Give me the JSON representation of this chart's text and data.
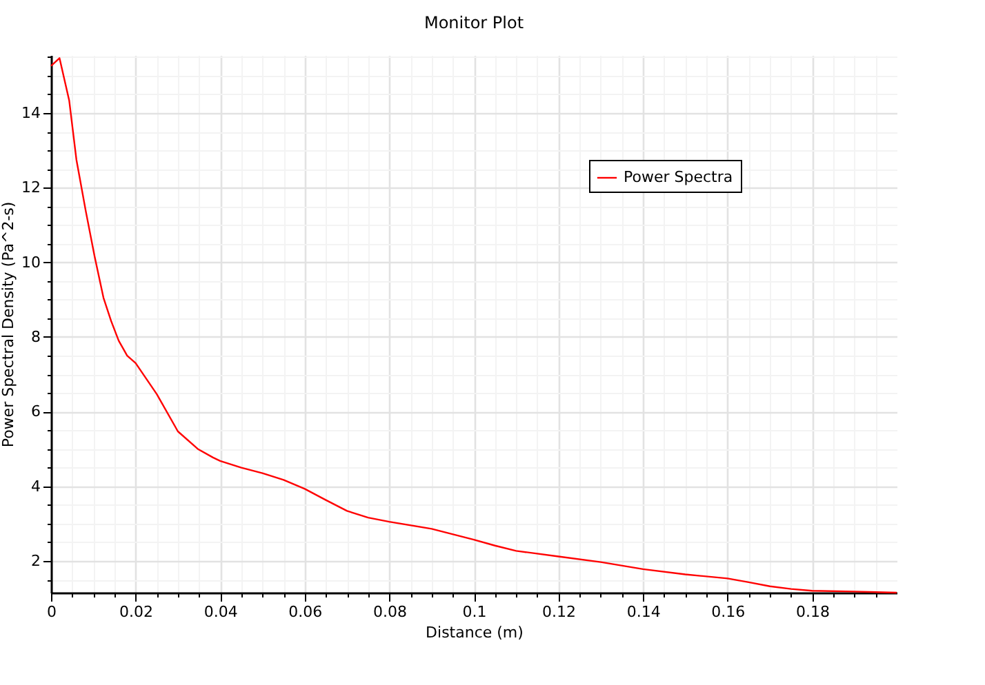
{
  "chart_data": {
    "type": "line",
    "title": "Monitor Plot",
    "xlabel": "Distance  (m)",
    "ylabel": "Power Spectral Density  (Pa^2-s)",
    "x": [
      0,
      0.002,
      0.0043,
      0.006,
      0.0082,
      0.0103,
      0.0124,
      0.0142,
      0.016,
      0.018,
      0.02,
      0.025,
      0.03,
      0.0347,
      0.0383,
      0.04,
      0.045,
      0.05,
      0.055,
      0.06,
      0.065,
      0.07,
      0.075,
      0.08,
      0.09,
      0.1,
      0.105,
      0.11,
      0.12,
      0.13,
      0.14,
      0.15,
      0.16,
      0.165,
      0.17,
      0.175,
      0.18,
      0.19,
      0.2
    ],
    "series": [
      {
        "name": "Power Spectra",
        "color": "#ff0000",
        "values": [
          15.26,
          15.47,
          14.33,
          12.75,
          11.38,
          10.16,
          9.05,
          8.43,
          7.9,
          7.5,
          7.3,
          6.47,
          5.47,
          5.0,
          4.77,
          4.68,
          4.5,
          4.35,
          4.17,
          3.93,
          3.63,
          3.34,
          3.16,
          3.05,
          2.86,
          2.57,
          2.41,
          2.27,
          2.12,
          1.97,
          1.78,
          1.64,
          1.53,
          1.43,
          1.32,
          1.25,
          1.2,
          1.18,
          1.15
        ]
      }
    ],
    "xlim": [
      0,
      0.2
    ],
    "ylim": [
      1.15,
      15.55
    ],
    "xticks": [
      0,
      {
        "value": 0.005,
        "label": null
      },
      {
        "value": 0.01,
        "label": null
      },
      {
        "value": 0.015,
        "label": null
      },
      0.02,
      {
        "value": 0.025,
        "label": null
      },
      {
        "value": 0.03,
        "label": null
      },
      {
        "value": 0.035,
        "label": null
      },
      0.04,
      {
        "value": 0.045,
        "label": null
      },
      {
        "value": 0.05,
        "label": null
      },
      {
        "value": 0.055,
        "label": null
      },
      0.06,
      {
        "value": 0.065,
        "label": null
      },
      {
        "value": 0.07,
        "label": null
      },
      {
        "value": 0.075,
        "label": null
      },
      0.08,
      {
        "value": 0.085,
        "label": null
      },
      {
        "value": 0.09,
        "label": null
      },
      {
        "value": 0.095,
        "label": null
      },
      0.1,
      {
        "value": 0.105,
        "label": null
      },
      {
        "value": 0.11,
        "label": null
      },
      {
        "value": 0.115,
        "label": null
      },
      0.12,
      {
        "value": 0.125,
        "label": null
      },
      {
        "value": 0.13,
        "label": null
      },
      {
        "value": 0.135,
        "label": null
      },
      0.14,
      {
        "value": 0.145,
        "label": null
      },
      {
        "value": 0.15,
        "label": null
      },
      {
        "value": 0.155,
        "label": null
      },
      0.16,
      {
        "value": 0.165,
        "label": null
      },
      {
        "value": 0.17,
        "label": null
      },
      {
        "value": 0.175,
        "label": null
      },
      0.18,
      {
        "value": 0.185,
        "label": null
      },
      {
        "value": 0.19,
        "label": null
      },
      {
        "value": 0.195,
        "label": null
      }
    ],
    "yticks": [
      {
        "value": 1.5,
        "label": null
      },
      2,
      {
        "value": 2.5,
        "label": null
      },
      {
        "value": 3,
        "label": null
      },
      {
        "value": 3.5,
        "label": null
      },
      4,
      {
        "value": 4.5,
        "label": null
      },
      {
        "value": 5,
        "label": null
      },
      {
        "value": 5.5,
        "label": null
      },
      6,
      {
        "value": 6.5,
        "label": null
      },
      {
        "value": 7,
        "label": null
      },
      {
        "value": 7.5,
        "label": null
      },
      8,
      {
        "value": 8.5,
        "label": null
      },
      {
        "value": 9,
        "label": null
      },
      {
        "value": 9.5,
        "label": null
      },
      10,
      {
        "value": 10.5,
        "label": null
      },
      {
        "value": 11,
        "label": null
      },
      {
        "value": 11.5,
        "label": null
      },
      12,
      {
        "value": 12.5,
        "label": null
      },
      {
        "value": 13,
        "label": null
      },
      {
        "value": 13.5,
        "label": null
      },
      14,
      {
        "value": 14.5,
        "label": null
      },
      {
        "value": 15,
        "label": null
      },
      {
        "value": 15.5,
        "label": null
      }
    ],
    "grid": true,
    "legend": "top right",
    "marker": "none",
    "line_style": "solid"
  }
}
